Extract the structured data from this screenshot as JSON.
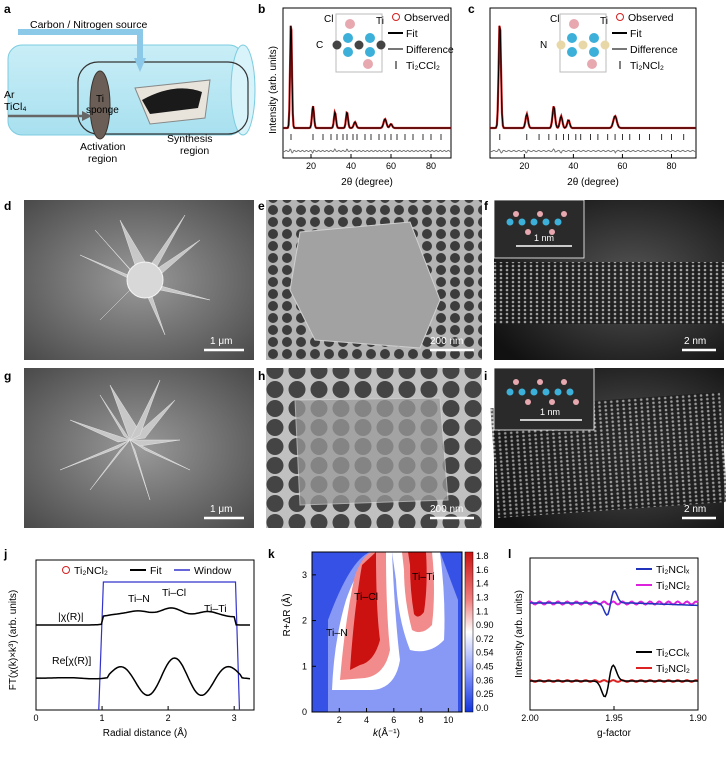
{
  "panels": {
    "a": {
      "label": "a",
      "source": "Carbon / Nitrogen source",
      "ar": "Ar",
      "ticl4": "TiCl₄",
      "ti": "Ti",
      "sponge": "sponge",
      "activation": "Activation",
      "activation2": "region",
      "synthesis": "Synthesis",
      "synthesis2": "region"
    },
    "b": {
      "label": "b",
      "ylabel": "Intensity (arb. units)",
      "xlabel": "2θ (degree)",
      "xticks": [
        "20",
        "40",
        "60",
        "80"
      ],
      "legend": [
        "Observed",
        "Fit",
        "Difference",
        "Ti₂CCl₂"
      ],
      "atoms": [
        "Cl",
        "Ti",
        "C"
      ]
    },
    "c": {
      "label": "c",
      "xlabel": "2θ (degree)",
      "xticks": [
        "20",
        "40",
        "60",
        "80"
      ],
      "legend": [
        "Observed",
        "Fit",
        "Difference",
        "Ti₂NCl₂"
      ],
      "atoms": [
        "Cl",
        "Ti",
        "N"
      ]
    },
    "d": {
      "label": "d",
      "scale": "1 μm"
    },
    "e": {
      "label": "e",
      "scale": "200 nm"
    },
    "f": {
      "label": "f",
      "scale": "2 nm",
      "inset_scale": "1 nm"
    },
    "g": {
      "label": "g",
      "scale": "1 μm"
    },
    "h": {
      "label": "h",
      "scale": "200 nm"
    },
    "i": {
      "label": "i",
      "scale": "2 nm",
      "inset_scale": "1 nm"
    },
    "j": {
      "label": "j",
      "ylabel": "FT(χ(k)×k³) (arb. units)",
      "xlabel": "Radial distance (Å)",
      "xticks": [
        "0",
        "1",
        "2",
        "3"
      ],
      "legend": [
        "Ti₂NCl₂",
        "Fit",
        "Window"
      ],
      "chi": "|χ(R)|",
      "re": "Re[χ(R)]",
      "peaks": [
        "Ti–N",
        "Ti–Cl",
        "Ti–Ti"
      ]
    },
    "k": {
      "label": "k",
      "ylabel": "R+ΔR (Å)",
      "xlabel_k": "k",
      "xlabel_rest": " (Å⁻¹)",
      "xticks": [
        "2",
        "4",
        "6",
        "8",
        "10"
      ],
      "yticks": [
        "0",
        "1",
        "2",
        "3"
      ],
      "cbar": [
        "1.8",
        "1.6",
        "1.4",
        "1.3",
        "1.1",
        "0.90",
        "0.72",
        "0.54",
        "0.45",
        "0.36",
        "0.25",
        "0.0"
      ],
      "peaks": [
        "Ti–N",
        "Ti–Cl",
        "Ti–Ti"
      ]
    },
    "l": {
      "label": "l",
      "ylabel": "Intensity (arb. units)",
      "xlabel": "g-factor",
      "xticks": [
        "2.00",
        "1.95",
        "1.90"
      ],
      "legend_top": [
        "Ti₂NClₓ",
        "Ti₂NCl₂"
      ],
      "legend_bot": [
        "Ti₂CClₓ",
        "Ti₂NCl₂"
      ]
    }
  },
  "colors": {
    "observed": "#d42020",
    "fit": "#000000",
    "diff": "#777777",
    "blue": "#2233bb",
    "magenta": "#dd22dd",
    "red": "#dd2222"
  }
}
